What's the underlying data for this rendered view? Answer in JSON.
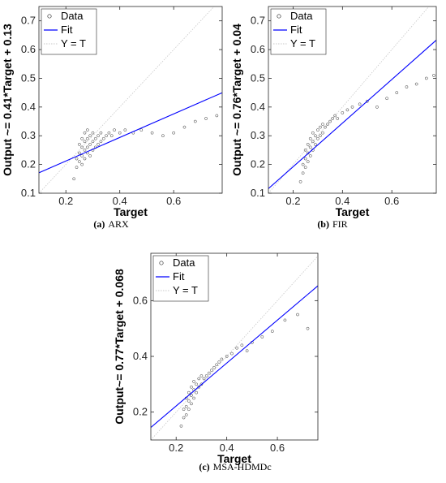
{
  "chart_data": [
    {
      "type": "scatter",
      "caption_letter": "(a)",
      "caption_name": "ARX",
      "xlabel": "Target",
      "ylabel": "Output ~= 0.41*Target + 0.13",
      "xlim": [
        0.1,
        0.78
      ],
      "ylim": [
        0.1,
        0.75
      ],
      "xticks": [
        "0.2",
        "0.4",
        "0.6"
      ],
      "yticks": [
        "0.1",
        "0.2",
        "0.3",
        "0.4",
        "0.5",
        "0.6",
        "0.7"
      ],
      "legend": [
        "Data",
        "Fit",
        "Y = T"
      ],
      "legend_position": "top-left",
      "fit": {
        "slope": 0.41,
        "intercept": 0.13
      },
      "series": [
        {
          "name": "Data",
          "points": [
            [
              0.23,
              0.15
            ],
            [
              0.24,
              0.19
            ],
            [
              0.24,
              0.22
            ],
            [
              0.25,
              0.21
            ],
            [
              0.25,
              0.24
            ],
            [
              0.25,
              0.27
            ],
            [
              0.26,
              0.2
            ],
            [
              0.26,
              0.23
            ],
            [
              0.26,
              0.26
            ],
            [
              0.26,
              0.29
            ],
            [
              0.27,
              0.22
            ],
            [
              0.27,
              0.25
            ],
            [
              0.27,
              0.28
            ],
            [
              0.27,
              0.31
            ],
            [
              0.28,
              0.24
            ],
            [
              0.28,
              0.26
            ],
            [
              0.28,
              0.29
            ],
            [
              0.28,
              0.32
            ],
            [
              0.29,
              0.23
            ],
            [
              0.29,
              0.27
            ],
            [
              0.29,
              0.3
            ],
            [
              0.3,
              0.25
            ],
            [
              0.3,
              0.28
            ],
            [
              0.3,
              0.31
            ],
            [
              0.31,
              0.26
            ],
            [
              0.31,
              0.29
            ],
            [
              0.32,
              0.27
            ],
            [
              0.32,
              0.3
            ],
            [
              0.33,
              0.28
            ],
            [
              0.33,
              0.31
            ],
            [
              0.34,
              0.29
            ],
            [
              0.35,
              0.3
            ],
            [
              0.36,
              0.31
            ],
            [
              0.37,
              0.3
            ],
            [
              0.38,
              0.32
            ],
            [
              0.4,
              0.31
            ],
            [
              0.42,
              0.32
            ],
            [
              0.45,
              0.31
            ],
            [
              0.48,
              0.32
            ],
            [
              0.52,
              0.31
            ],
            [
              0.56,
              0.3
            ],
            [
              0.6,
              0.31
            ],
            [
              0.64,
              0.33
            ],
            [
              0.68,
              0.35
            ],
            [
              0.72,
              0.36
            ],
            [
              0.76,
              0.37
            ]
          ]
        },
        {
          "name": "Fit"
        },
        {
          "name": "Y = T"
        }
      ]
    },
    {
      "type": "scatter",
      "caption_letter": "(b)",
      "caption_name": "FIR",
      "xlabel": "Target",
      "ylabel": "Output ~= 0.76*Target + 0.04",
      "xlim": [
        0.1,
        0.78
      ],
      "ylim": [
        0.1,
        0.75
      ],
      "xticks": [
        "0.2",
        "0.4",
        "0.6"
      ],
      "yticks": [
        "0.1",
        "0.2",
        "0.3",
        "0.4",
        "0.5",
        "0.6",
        "0.7"
      ],
      "legend": [
        "Data",
        "Fit",
        "Y = T"
      ],
      "legend_position": "top-left",
      "fit": {
        "slope": 0.76,
        "intercept": 0.04
      },
      "series": [
        {
          "name": "Data",
          "points": [
            [
              0.23,
              0.14
            ],
            [
              0.24,
              0.17
            ],
            [
              0.24,
              0.2
            ],
            [
              0.25,
              0.19
            ],
            [
              0.25,
              0.22
            ],
            [
              0.25,
              0.25
            ],
            [
              0.26,
              0.21
            ],
            [
              0.26,
              0.24
            ],
            [
              0.26,
              0.27
            ],
            [
              0.27,
              0.23
            ],
            [
              0.27,
              0.26
            ],
            [
              0.27,
              0.29
            ],
            [
              0.28,
              0.25
            ],
            [
              0.28,
              0.28
            ],
            [
              0.28,
              0.31
            ],
            [
              0.29,
              0.27
            ],
            [
              0.29,
              0.3
            ],
            [
              0.3,
              0.29
            ],
            [
              0.3,
              0.32
            ],
            [
              0.31,
              0.3
            ],
            [
              0.31,
              0.33
            ],
            [
              0.32,
              0.31
            ],
            [
              0.32,
              0.34
            ],
            [
              0.33,
              0.33
            ],
            [
              0.34,
              0.34
            ],
            [
              0.35,
              0.35
            ],
            [
              0.36,
              0.36
            ],
            [
              0.37,
              0.37
            ],
            [
              0.38,
              0.36
            ],
            [
              0.4,
              0.38
            ],
            [
              0.42,
              0.39
            ],
            [
              0.44,
              0.4
            ],
            [
              0.47,
              0.41
            ],
            [
              0.5,
              0.42
            ],
            [
              0.54,
              0.4
            ],
            [
              0.58,
              0.43
            ],
            [
              0.62,
              0.45
            ],
            [
              0.66,
              0.47
            ],
            [
              0.7,
              0.48
            ],
            [
              0.74,
              0.5
            ],
            [
              0.77,
              0.51
            ]
          ]
        },
        {
          "name": "Fit"
        },
        {
          "name": "Y = T"
        }
      ]
    },
    {
      "type": "scatter",
      "caption_letter": "(c)",
      "caption_name": "MSA-HDMDc",
      "xlabel": "Target",
      "ylabel": "Output~= 0.77*Target + 0.068",
      "xlim": [
        0.1,
        0.76
      ],
      "ylim": [
        0.1,
        0.77
      ],
      "xticks": [
        "0.2",
        "0.4",
        "0.6"
      ],
      "yticks": [
        "0.2",
        "0.4",
        "0.6"
      ],
      "legend": [
        "Data",
        "Fit",
        "Y = T"
      ],
      "legend_position": "top-left",
      "fit": {
        "slope": 0.77,
        "intercept": 0.068
      },
      "series": [
        {
          "name": "Data",
          "points": [
            [
              0.22,
              0.15
            ],
            [
              0.23,
              0.18
            ],
            [
              0.23,
              0.21
            ],
            [
              0.24,
              0.19
            ],
            [
              0.24,
              0.22
            ],
            [
              0.24,
              0.25
            ],
            [
              0.25,
              0.21
            ],
            [
              0.25,
              0.24
            ],
            [
              0.25,
              0.27
            ],
            [
              0.26,
              0.23
            ],
            [
              0.26,
              0.26
            ],
            [
              0.26,
              0.29
            ],
            [
              0.27,
              0.25
            ],
            [
              0.27,
              0.28
            ],
            [
              0.27,
              0.31
            ],
            [
              0.28,
              0.27
            ],
            [
              0.28,
              0.3
            ],
            [
              0.29,
              0.29
            ],
            [
              0.29,
              0.32
            ],
            [
              0.3,
              0.3
            ],
            [
              0.3,
              0.33
            ],
            [
              0.31,
              0.32
            ],
            [
              0.32,
              0.33
            ],
            [
              0.33,
              0.34
            ],
            [
              0.34,
              0.35
            ],
            [
              0.35,
              0.36
            ],
            [
              0.36,
              0.37
            ],
            [
              0.37,
              0.38
            ],
            [
              0.38,
              0.39
            ],
            [
              0.4,
              0.4
            ],
            [
              0.42,
              0.41
            ],
            [
              0.44,
              0.43
            ],
            [
              0.46,
              0.44
            ],
            [
              0.48,
              0.42
            ],
            [
              0.5,
              0.45
            ],
            [
              0.54,
              0.47
            ],
            [
              0.58,
              0.49
            ],
            [
              0.63,
              0.53
            ],
            [
              0.68,
              0.55
            ],
            [
              0.72,
              0.5
            ]
          ]
        },
        {
          "name": "Fit"
        },
        {
          "name": "Y = T"
        }
      ]
    }
  ]
}
